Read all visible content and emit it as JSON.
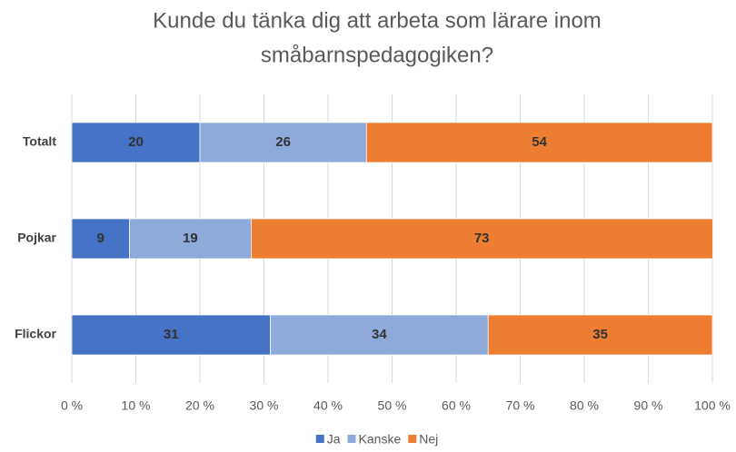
{
  "chart_data": {
    "type": "bar",
    "orientation": "horizontal",
    "stacked": true,
    "title": [
      "Kunde du tänka dig att arbeta som lärare inom",
      "småbarnspedagogiken?"
    ],
    "categories": [
      "Totalt",
      "Pojkar",
      "Flickor"
    ],
    "series": [
      {
        "name": "Ja",
        "color": "#4472c4",
        "values": [
          20,
          9,
          31
        ]
      },
      {
        "name": "Kanske",
        "color": "#8eaadb",
        "values": [
          26,
          19,
          34
        ]
      },
      {
        "name": "Nej",
        "color": "#ed7d31",
        "values": [
          54,
          73,
          35
        ]
      }
    ],
    "xlim": [
      0,
      100
    ],
    "xticks": [
      {
        "value": 0,
        "label": "0 %"
      },
      {
        "value": 10,
        "label": "10 %"
      },
      {
        "value": 20,
        "label": "20 %"
      },
      {
        "value": 30,
        "label": "30 %"
      },
      {
        "value": 40,
        "label": "40 %"
      },
      {
        "value": 50,
        "label": "50 %"
      },
      {
        "value": 60,
        "label": "60 %"
      },
      {
        "value": 70,
        "label": "70 %"
      },
      {
        "value": 80,
        "label": "80 %"
      },
      {
        "value": 90,
        "label": "90 %"
      },
      {
        "value": 100,
        "label": "100 %"
      }
    ],
    "grid": true,
    "legend": "bottom"
  }
}
